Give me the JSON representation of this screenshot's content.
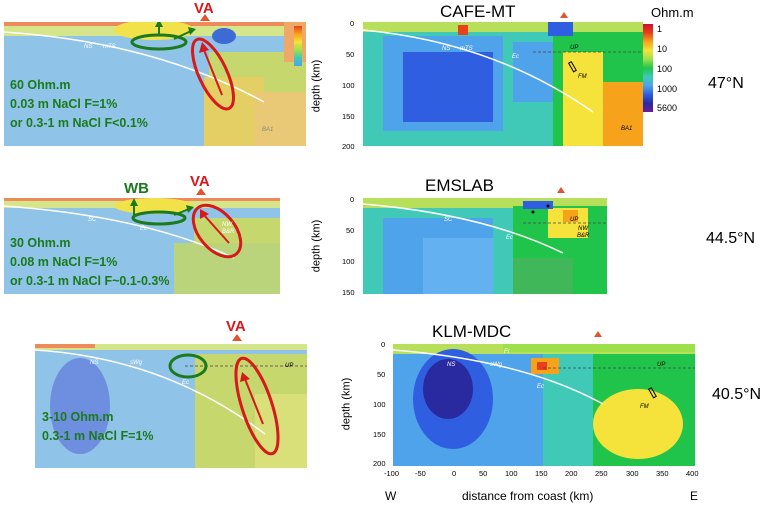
{
  "colorbar": {
    "unit": "Ohm.m",
    "ticks": [
      "1",
      "10",
      "100",
      "1000",
      "5600"
    ],
    "colors": [
      "#c8102e",
      "#e8401c",
      "#f7a21b",
      "#f5e23a",
      "#9ee04a",
      "#21c44a",
      "#3fc9b6",
      "#4fa3ea",
      "#2f5fe0",
      "#2a2aa0",
      "#6a1b9a"
    ]
  },
  "rows": [
    {
      "title": "CAFE-MT",
      "latitude": "47°N",
      "va_label": "VA",
      "wb_label": "",
      "annotations": [
        "60 Ohm.m",
        "0.03 m NaCl F=1%",
        "or 0.3-1 m NaCl F<0.1%"
      ],
      "model_labels": [
        "NS",
        "mTS",
        "Ec",
        "UP",
        "FM",
        "BA1"
      ],
      "depth_ticks": [
        "0",
        "50",
        "100",
        "150",
        "200"
      ]
    },
    {
      "title": "EMSLAB",
      "latitude": "44.5°N",
      "va_label": "VA",
      "wb_label": "WB",
      "annotations": [
        "30 Ohm.m",
        "0.08 m NaCl F=1%",
        "or 0.3-1 m NaCl F~0.1-0.3%"
      ],
      "model_labels": [
        "SC",
        "Ec",
        "UP",
        "NW",
        "B&R"
      ],
      "depth_ticks": [
        "0",
        "50",
        "100",
        "150"
      ]
    },
    {
      "title": "KLM-MDC",
      "latitude": "40.5°N",
      "va_label": "VA",
      "wb_label": "",
      "annotations": [
        "3-10 Ohm.m",
        "0.3-1 m NaCl F=1%"
      ],
      "model_labels": [
        "NS",
        "Fr",
        "sWg",
        "Ec",
        "UP",
        "FM"
      ],
      "depth_ticks": [
        "0",
        "50",
        "100",
        "150",
        "200"
      ]
    }
  ],
  "y_axis_label": "depth (km)",
  "x_axis": {
    "label": "distance from coast (km)",
    "ticks": [
      "-100",
      "-50",
      "0",
      "50",
      "100",
      "150",
      "200",
      "250",
      "300",
      "350",
      "400"
    ],
    "west": "W",
    "east": "E"
  }
}
